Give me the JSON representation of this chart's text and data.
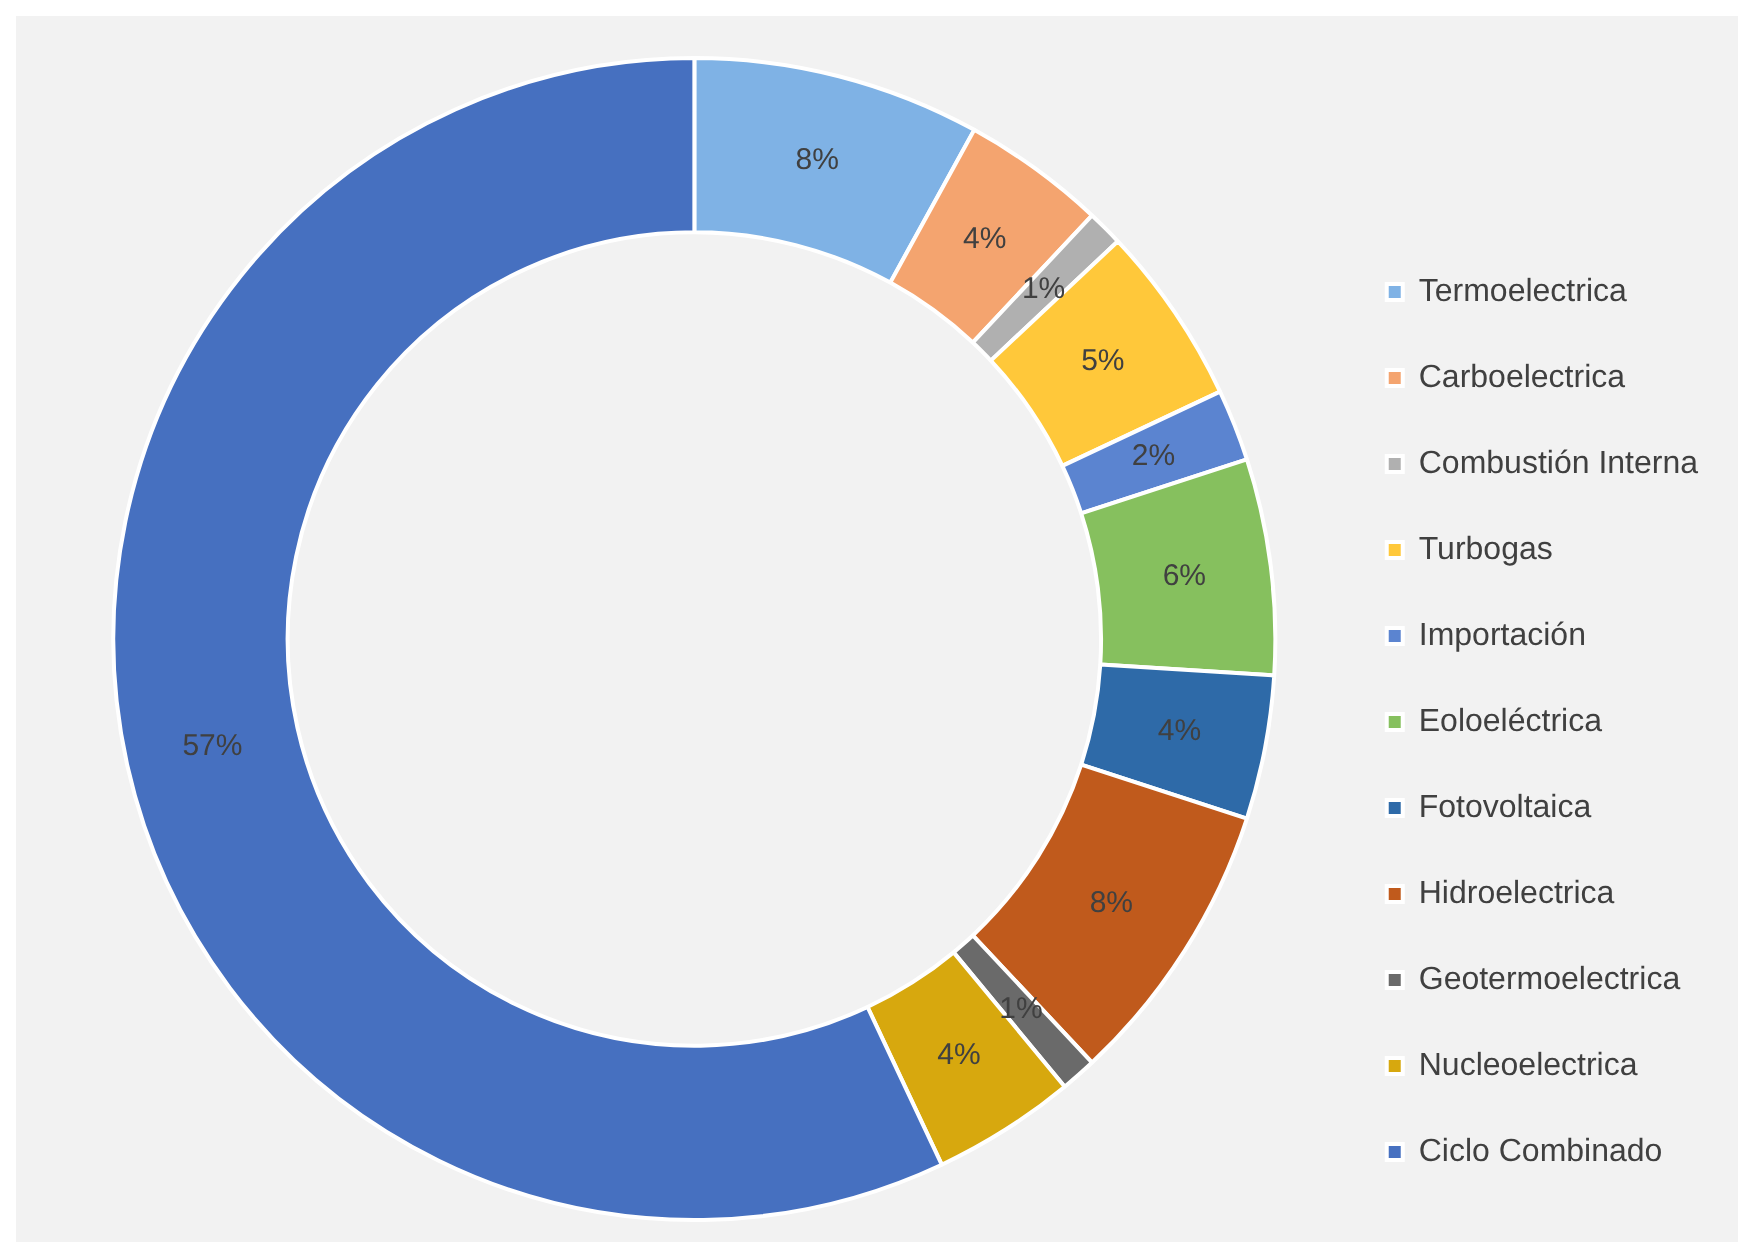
{
  "chart_data": {
    "type": "donut",
    "categories": [
      "Termoelectrica",
      "Carboelectrica",
      "Combustión Interna",
      "Turbogas",
      "Importación",
      "Eoloeléctrica",
      "Fotovoltaica",
      "Hidroelectrica",
      "Geotermoelectrica",
      "Nucleoelectrica",
      "Ciclo Combinado"
    ],
    "values": [
      8,
      4,
      1,
      5,
      2,
      6,
      4,
      8,
      1,
      4,
      57
    ],
    "value_labels": [
      "8%",
      "4%",
      "1%",
      "5%",
      "2%",
      "6%",
      "4%",
      "8%",
      "1%",
      "4%",
      "57%"
    ],
    "colors": [
      "#7fb2e5",
      "#f4a46f",
      "#b0b0b0",
      "#ffc83a",
      "#5b84d0",
      "#86c05e",
      "#2e6aa8",
      "#c05a1c",
      "#6a6a6a",
      "#d7a80e",
      "#4670c0"
    ],
    "legend": "right"
  }
}
